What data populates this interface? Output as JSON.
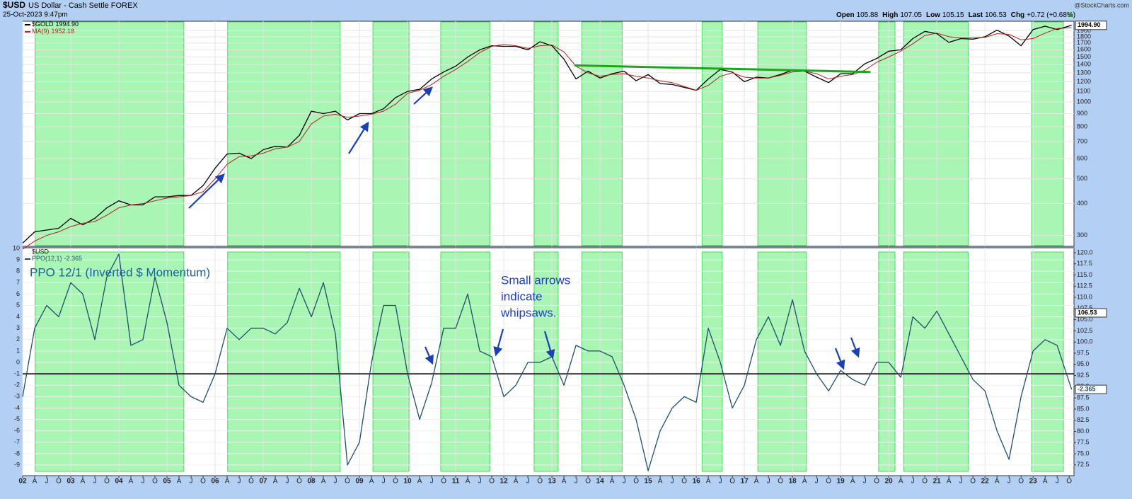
{
  "header": {
    "symbol": "$USD",
    "name": "US Dollar - Cash Settle FOREX",
    "date": "25-Oct-2023 9:47pm",
    "quote": [
      [
        "Open",
        "105.88"
      ],
      [
        "High",
        "107.05"
      ],
      [
        "Low",
        "105.15"
      ],
      [
        "Last",
        "106.53"
      ],
      [
        "Chg",
        "+0.72 (+0.68%)"
      ]
    ],
    "credit": "@StockCharts.com"
  },
  "chart_data": [
    {
      "type": "line",
      "yscale": "log",
      "grid": true,
      "xlim": [
        2002,
        2023.85
      ],
      "ylim": [
        272,
        2070
      ],
      "yticks": [
        300,
        400,
        500,
        600,
        700,
        800,
        900,
        1000,
        1100,
        1200,
        1300,
        1400,
        1500,
        1600,
        1700,
        1800,
        1900
      ],
      "x": [
        2002,
        2002.25,
        2002.5,
        2002.75,
        2003,
        2003.25,
        2003.5,
        2003.75,
        2004,
        2004.25,
        2004.5,
        2004.75,
        2005,
        2005.25,
        2005.5,
        2005.75,
        2006,
        2006.25,
        2006.5,
        2006.75,
        2007,
        2007.25,
        2007.5,
        2007.75,
        2008,
        2008.25,
        2008.5,
        2008.75,
        2009,
        2009.25,
        2009.5,
        2009.75,
        2010,
        2010.25,
        2010.5,
        2010.75,
        2011,
        2011.25,
        2011.5,
        2011.75,
        2012,
        2012.25,
        2012.5,
        2012.75,
        2013,
        2013.25,
        2013.5,
        2013.75,
        2014,
        2014.25,
        2014.5,
        2014.75,
        2015,
        2015.25,
        2015.5,
        2015.75,
        2016,
        2016.25,
        2016.5,
        2016.75,
        2017,
        2017.25,
        2017.5,
        2017.75,
        2018,
        2018.25,
        2018.5,
        2018.75,
        2019,
        2019.25,
        2019.5,
        2019.75,
        2020,
        2020.25,
        2020.5,
        2020.75,
        2021,
        2021.25,
        2021.5,
        2021.75,
        2022,
        2022.25,
        2022.5,
        2022.75,
        2023,
        2023.25,
        2023.5,
        2023.8
      ],
      "xticks": [
        {
          "value": 2002,
          "label": "02"
        },
        {
          "value": 2002.25,
          "label": "A"
        },
        {
          "value": 2002.5,
          "label": "J"
        },
        {
          "value": 2002.75,
          "label": "O"
        },
        {
          "value": 2003,
          "label": "03"
        },
        {
          "value": 2003.25,
          "label": "A"
        },
        {
          "value": 2003.5,
          "label": "J"
        },
        {
          "value": 2003.75,
          "label": "O"
        },
        {
          "value": 2004,
          "label": "04"
        },
        {
          "value": 2004.25,
          "label": "A"
        },
        {
          "value": 2004.5,
          "label": "J"
        },
        {
          "value": 2004.75,
          "label": "O"
        },
        {
          "value": 2005,
          "label": "05"
        },
        {
          "value": 2005.25,
          "label": "A"
        },
        {
          "value": 2005.5,
          "label": "J"
        },
        {
          "value": 2005.75,
          "label": "O"
        },
        {
          "value": 2006,
          "label": "06"
        },
        {
          "value": 2006.25,
          "label": "A"
        },
        {
          "value": 2006.5,
          "label": "J"
        },
        {
          "value": 2006.75,
          "label": "O"
        },
        {
          "value": 2007,
          "label": "07"
        },
        {
          "value": 2007.25,
          "label": "A"
        },
        {
          "value": 2007.5,
          "label": "J"
        },
        {
          "value": 2007.75,
          "label": "O"
        },
        {
          "value": 2008,
          "label": "08"
        },
        {
          "value": 2008.25,
          "label": "A"
        },
        {
          "value": 2008.5,
          "label": "J"
        },
        {
          "value": 2008.75,
          "label": "O"
        },
        {
          "value": 2009,
          "label": "09"
        },
        {
          "value": 2009.25,
          "label": "A"
        },
        {
          "value": 2009.5,
          "label": "J"
        },
        {
          "value": 2009.75,
          "label": "O"
        },
        {
          "value": 2010,
          "label": "10"
        },
        {
          "value": 2010.25,
          "label": "A"
        },
        {
          "value": 2010.5,
          "label": "J"
        },
        {
          "value": 2010.75,
          "label": "O"
        },
        {
          "value": 2011,
          "label": "11"
        },
        {
          "value": 2011.25,
          "label": "A"
        },
        {
          "value": 2011.5,
          "label": "J"
        },
        {
          "value": 2011.75,
          "label": "O"
        },
        {
          "value": 2012,
          "label": "12"
        },
        {
          "value": 2012.25,
          "label": "A"
        },
        {
          "value": 2012.5,
          "label": "J"
        },
        {
          "value": 2012.75,
          "label": "O"
        },
        {
          "value": 2013,
          "label": "13"
        },
        {
          "value": 2013.25,
          "label": "A"
        },
        {
          "value": 2013.5,
          "label": "J"
        },
        {
          "value": 2013.75,
          "label": "O"
        },
        {
          "value": 2014,
          "label": "14"
        },
        {
          "value": 2014.25,
          "label": "A"
        },
        {
          "value": 2014.5,
          "label": "J"
        },
        {
          "value": 2014.75,
          "label": "O"
        },
        {
          "value": 2015,
          "label": "15"
        },
        {
          "value": 2015.25,
          "label": "A"
        },
        {
          "value": 2015.5,
          "label": "J"
        },
        {
          "value": 2015.75,
          "label": "O"
        },
        {
          "value": 2016,
          "label": "16"
        },
        {
          "value": 2016.25,
          "label": "A"
        },
        {
          "value": 2016.5,
          "label": "J"
        },
        {
          "value": 2016.75,
          "label": "O"
        },
        {
          "value": 2017,
          "label": "17"
        },
        {
          "value": 2017.25,
          "label": "A"
        },
        {
          "value": 2017.5,
          "label": "J"
        },
        {
          "value": 2017.75,
          "label": "O"
        },
        {
          "value": 2018,
          "label": "18"
        },
        {
          "value": 2018.25,
          "label": "A"
        },
        {
          "value": 2018.5,
          "label": "J"
        },
        {
          "value": 2018.75,
          "label": "O"
        },
        {
          "value": 2019,
          "label": "19"
        },
        {
          "value": 2019.25,
          "label": "A"
        },
        {
          "value": 2019.5,
          "label": "J"
        },
        {
          "value": 2019.75,
          "label": "O"
        },
        {
          "value": 2020,
          "label": "20"
        },
        {
          "value": 2020.25,
          "label": "A"
        },
        {
          "value": 2020.5,
          "label": "J"
        },
        {
          "value": 2020.75,
          "label": "O"
        },
        {
          "value": 2021,
          "label": "21"
        },
        {
          "value": 2021.25,
          "label": "A"
        },
        {
          "value": 2021.5,
          "label": "J"
        },
        {
          "value": 2021.75,
          "label": "O"
        },
        {
          "value": 2022,
          "label": "22"
        },
        {
          "value": 2022.25,
          "label": "A"
        },
        {
          "value": 2022.5,
          "label": "J"
        },
        {
          "value": 2022.75,
          "label": "O"
        },
        {
          "value": 2023,
          "label": "23"
        },
        {
          "value": 2023.25,
          "label": "A"
        },
        {
          "value": 2023.5,
          "label": "J"
        },
        {
          "value": 2023.75,
          "label": "O"
        }
      ],
      "series": [
        {
          "name": "$GOLD",
          "last_value_label": "1994.90",
          "color": "#000000",
          "values": [
            280,
            310,
            315,
            320,
            350,
            330,
            350,
            385,
            410,
            395,
            395,
            425,
            425,
            430,
            430,
            470,
            550,
            625,
            630,
            600,
            650,
            670,
            665,
            740,
            920,
            900,
            920,
            850,
            900,
            900,
            940,
            1040,
            1100,
            1120,
            1230,
            1310,
            1380,
            1500,
            1600,
            1660,
            1650,
            1650,
            1600,
            1720,
            1660,
            1470,
            1230,
            1320,
            1240,
            1290,
            1320,
            1210,
            1280,
            1180,
            1170,
            1140,
            1110,
            1230,
            1340,
            1310,
            1200,
            1250,
            1240,
            1280,
            1330,
            1320,
            1250,
            1190,
            1290,
            1290,
            1410,
            1480,
            1580,
            1600,
            1770,
            1890,
            1850,
            1710,
            1770,
            1760,
            1800,
            1910,
            1810,
            1660,
            1920,
            1980,
            1920,
            1994.9
          ]
        },
        {
          "name": "MA(9)",
          "color": "#b22222",
          "values": [
            265,
            285,
            300,
            310,
            325,
            335,
            340,
            360,
            385,
            395,
            400,
            410,
            420,
            425,
            430,
            445,
            500,
            570,
            610,
            615,
            630,
            655,
            665,
            700,
            820,
            880,
            895,
            870,
            880,
            895,
            920,
            980,
            1080,
            1110,
            1170,
            1260,
            1340,
            1440,
            1560,
            1650,
            1680,
            1660,
            1620,
            1660,
            1670,
            1570,
            1380,
            1300,
            1260,
            1280,
            1290,
            1260,
            1240,
            1210,
            1190,
            1150,
            1110,
            1160,
            1260,
            1300,
            1250,
            1240,
            1240,
            1270,
            1310,
            1320,
            1290,
            1230,
            1260,
            1280,
            1330,
            1430,
            1500,
            1580,
            1690,
            1820,
            1860,
            1800,
            1780,
            1780,
            1790,
            1850,
            1840,
            1750,
            1770,
            1860,
            1940,
            1952.18
          ]
        }
      ],
      "shaded": [
        [
          2002.26,
          2005.35
        ],
        [
          2006.26,
          2008.6
        ],
        [
          2009.28,
          2010.03
        ],
        [
          2010.69,
          2011.71
        ],
        [
          2012.63,
          2013.13
        ],
        [
          2013.62,
          2014.46
        ],
        [
          2016.12,
          2016.54
        ],
        [
          2017.28,
          2018.29
        ],
        [
          2019.79,
          2020.13
        ],
        [
          2020.31,
          2021.65
        ],
        [
          2022.97,
          2023.63
        ]
      ],
      "shade_color": "#a9f5b3",
      "trendline": {
        "x": [
          2013.47,
          2019.62
        ],
        "values": [
          1390,
          1310
        ],
        "color": "#1aa81a"
      }
    },
    {
      "type": "line",
      "grid": true,
      "panel_label": "$USD",
      "ylim": [
        -9.93,
        10.06
      ],
      "yticks": [
        -9,
        -8,
        -7,
        -6,
        -5,
        -4,
        -3,
        -2,
        -1,
        0,
        1,
        2,
        3,
        4,
        5,
        6,
        7,
        8,
        9,
        10
      ],
      "y2lim": [
        70.1,
        121.1
      ],
      "y2ticks": [
        72.5,
        {
          "value": 75,
          "label": "75.0"
        },
        77.5,
        {
          "value": 80,
          "label": "80.0"
        },
        82.5,
        {
          "value": 85,
          "label": "85.0"
        },
        87.5,
        {
          "value": 90,
          "label": "90.0"
        },
        92.5,
        {
          "value": 95,
          "label": "95.0"
        },
        97.5,
        {
          "value": 100,
          "label": "100.0"
        },
        102.5,
        {
          "value": 105,
          "label": "105.0"
        },
        107.5,
        {
          "value": 110,
          "label": "110.0"
        },
        112.5,
        {
          "value": 115,
          "label": "115.0"
        },
        117.5,
        {
          "value": 120,
          "label": "120.0"
        }
      ],
      "y2_marker": 106.53,
      "reference_line": -1,
      "series": [
        {
          "name": "PPO(12,1)",
          "color": "#1f4e6e",
          "values": [
            -3,
            3,
            5,
            4,
            7,
            6,
            2,
            7.5,
            9.5,
            1.5,
            2,
            7.5,
            3.5,
            -2,
            -3,
            -3.5,
            -1,
            3,
            2,
            3,
            3,
            2.5,
            3.5,
            6.5,
            4,
            7,
            2.5,
            -9,
            -7,
            0,
            5,
            5,
            -1,
            -5,
            -1.8,
            3,
            3,
            6,
            1,
            0.5,
            -3,
            -2,
            0,
            0,
            0.5,
            -2,
            1.5,
            1,
            1,
            0.5,
            -2,
            -5,
            -9.5,
            -6,
            -4,
            -3,
            -3.5,
            3,
            0,
            -4,
            -2,
            2,
            4,
            1.5,
            5.5,
            1,
            -1,
            -2.5,
            -0.7,
            -1.5,
            -2,
            0,
            0,
            -1.3,
            4,
            3,
            4.5,
            2.5,
            0.5,
            -1.5,
            -2.5,
            -6,
            -8.5,
            -3,
            1,
            2,
            1.5,
            -2.365
          ]
        }
      ],
      "annotations": {
        "title": "PPO 12/1 (Inverted $ Momentum)",
        "note": [
          "Small arrows",
          "indicate",
          "whipsaws."
        ]
      }
    }
  ]
}
